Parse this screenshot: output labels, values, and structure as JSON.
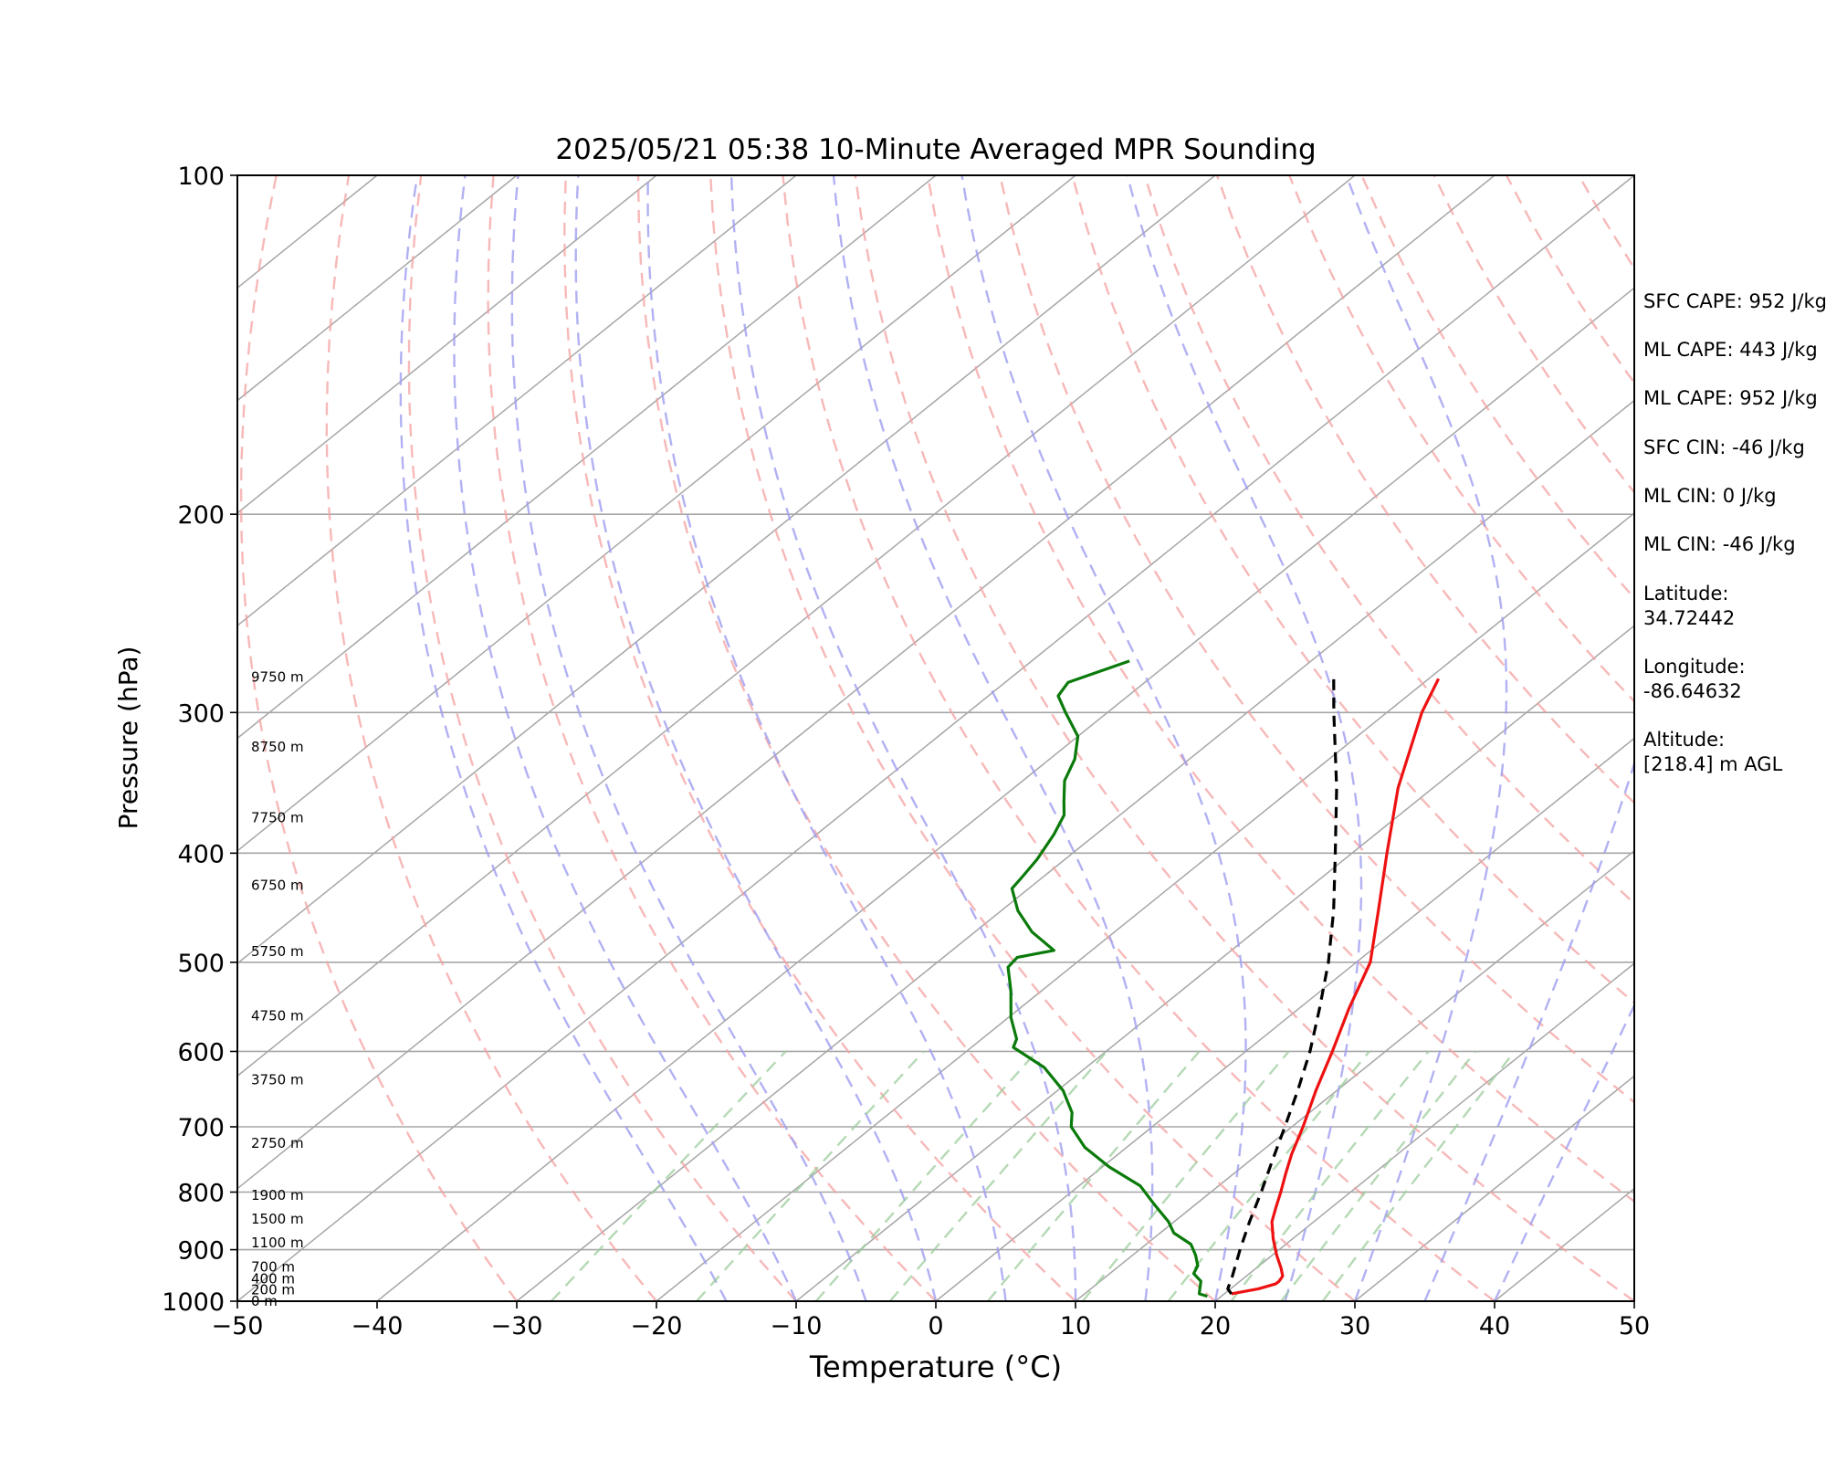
{
  "chart_data": {
    "type": "line",
    "title": "2025/05/21 05:38 10-Minute Averaged MPR Sounding",
    "xlabel": "Temperature (°C)",
    "ylabel": "Pressure (hPa)",
    "xlim": [
      -50,
      50
    ],
    "ylim": [
      1000,
      100
    ],
    "y_scale": "log",
    "skew_t": true,
    "grid": true,
    "x_ticks": [
      "−50",
      "−40",
      "−30",
      "−20",
      "−10",
      "0",
      "10",
      "20",
      "30",
      "40",
      "50"
    ],
    "y_ticks": [
      "100",
      "200",
      "300",
      "400",
      "500",
      "600",
      "700",
      "800",
      "900",
      "1000"
    ],
    "colors": {
      "temperature": "#ee1111",
      "dewpoint": "#0a7a0a",
      "parcel": "#000000",
      "dry_adiabats": "#f4a0a0",
      "moist_adiabats": "#9e9ef0",
      "mixing_ratio": "#9ccc9c",
      "isotherms": "#a6a6a6"
    },
    "height_labels": [
      {
        "p": 1000,
        "label": "0 m"
      },
      {
        "p": 977,
        "label": "200 m"
      },
      {
        "p": 955,
        "label": "400 m"
      },
      {
        "p": 932,
        "label": "700 m"
      },
      {
        "p": 887,
        "label": "1100 m"
      },
      {
        "p": 845,
        "label": "1500 m"
      },
      {
        "p": 805,
        "label": "1900 m"
      },
      {
        "p": 724,
        "label": "2750 m"
      },
      {
        "p": 636,
        "label": "3750 m"
      },
      {
        "p": 558,
        "label": "4750 m"
      },
      {
        "p": 489,
        "label": "5750 m"
      },
      {
        "p": 427,
        "label": "6750 m"
      },
      {
        "p": 372,
        "label": "7750 m"
      },
      {
        "p": 322,
        "label": "8750 m"
      },
      {
        "p": 279,
        "label": "9750 m"
      }
    ],
    "series": [
      {
        "key": "temperature",
        "points": [
          [
            985,
            20.5
          ],
          [
            975,
            22.0
          ],
          [
            965,
            22.8
          ],
          [
            960,
            22.8
          ],
          [
            950,
            22.6
          ],
          [
            935,
            21.8
          ],
          [
            910,
            20.3
          ],
          [
            880,
            18.6
          ],
          [
            850,
            17.0
          ],
          [
            825,
            16.0
          ],
          [
            800,
            15.0
          ],
          [
            770,
            13.7
          ],
          [
            740,
            12.4
          ],
          [
            700,
            10.8
          ],
          [
            650,
            8.5
          ],
          [
            600,
            6.2
          ],
          [
            550,
            3.6
          ],
          [
            500,
            1.0
          ],
          [
            450,
            -3.0
          ],
          [
            400,
            -7.5
          ],
          [
            350,
            -12.5
          ],
          [
            300,
            -17.5
          ],
          [
            280,
            -19.3
          ]
        ]
      },
      {
        "key": "dewpoint",
        "points": [
          [
            990,
            19.0
          ],
          [
            985,
            18.2
          ],
          [
            975,
            17.8
          ],
          [
            960,
            17.2
          ],
          [
            945,
            16.0
          ],
          [
            930,
            15.6
          ],
          [
            910,
            14.5
          ],
          [
            890,
            13.2
          ],
          [
            870,
            11.0
          ],
          [
            850,
            9.6
          ],
          [
            820,
            7.0
          ],
          [
            790,
            4.4
          ],
          [
            760,
            0.5
          ],
          [
            730,
            -3.0
          ],
          [
            700,
            -5.8
          ],
          [
            680,
            -7.0
          ],
          [
            650,
            -9.6
          ],
          [
            620,
            -13.0
          ],
          [
            595,
            -17.0
          ],
          [
            585,
            -17.5
          ],
          [
            560,
            -19.8
          ],
          [
            530,
            -22.2
          ],
          [
            505,
            -24.5
          ],
          [
            495,
            -24.7
          ],
          [
            488,
            -22.7
          ],
          [
            470,
            -25.9
          ],
          [
            450,
            -28.8
          ],
          [
            430,
            -31.2
          ],
          [
            420,
            -31.5
          ],
          [
            405,
            -32.0
          ],
          [
            385,
            -33.0
          ],
          [
            370,
            -34.0
          ],
          [
            360,
            -35.2
          ],
          [
            345,
            -37.0
          ],
          [
            330,
            -38.2
          ],
          [
            315,
            -40.0
          ],
          [
            300,
            -43.0
          ],
          [
            290,
            -45.0
          ],
          [
            282,
            -45.5
          ],
          [
            270,
            -43.0
          ]
        ]
      },
      {
        "key": "parcel",
        "points": [
          [
            985,
            20.5
          ],
          [
            975,
            19.8
          ],
          [
            950,
            19.0
          ],
          [
            900,
            17.2
          ],
          [
            850,
            15.4
          ],
          [
            800,
            13.6
          ],
          [
            750,
            11.6
          ],
          [
            700,
            9.5
          ],
          [
            650,
            7.2
          ],
          [
            600,
            4.6
          ],
          [
            550,
            1.5
          ],
          [
            500,
            -2.0
          ],
          [
            450,
            -6.2
          ],
          [
            400,
            -11.2
          ],
          [
            350,
            -16.9
          ],
          [
            300,
            -23.8
          ],
          [
            280,
            -26.8
          ]
        ]
      }
    ]
  },
  "info_panel": {
    "sfc_cape": "SFC CAPE: 952 J/kg",
    "ml_cape_1": "ML CAPE: 443 J/kg",
    "ml_cape_2": "ML CAPE: 952 J/kg",
    "sfc_cin": "SFC CIN: -46 J/kg",
    "ml_cin_1": "ML CIN: 0 J/kg",
    "ml_cin_2": "ML CIN: -46 J/kg",
    "latitude_label": "Latitude:",
    "latitude_value": "34.72442",
    "longitude_label": "Longitude:",
    "longitude_value": "-86.64632",
    "altitude_label": "Altitude:",
    "altitude_value": "[218.4] m AGL"
  }
}
